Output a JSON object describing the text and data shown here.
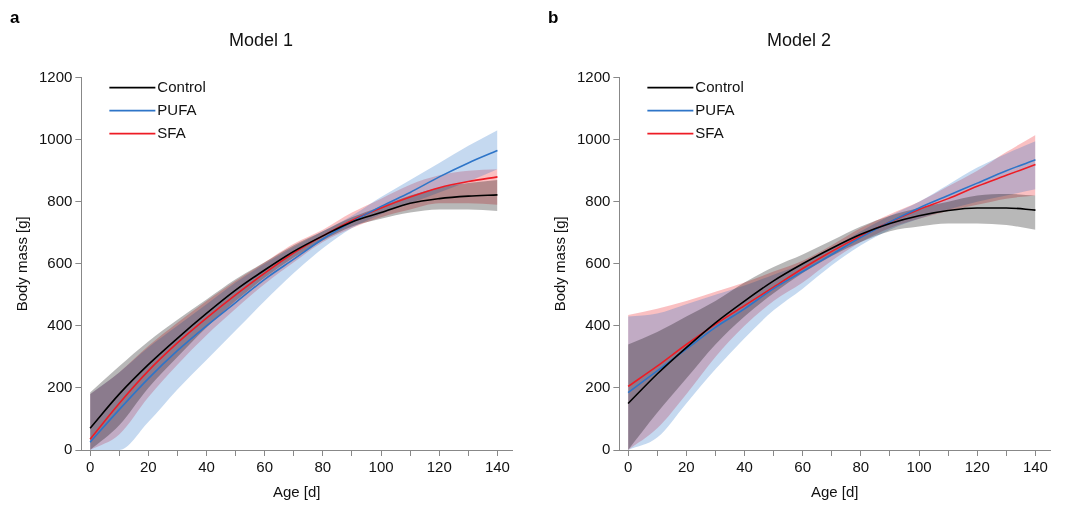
{
  "chart_data": [
    {
      "type": "line",
      "title": "Model 1",
      "xlabel": "Age [d]",
      "ylabel": "Body mass [g]",
      "annotations": [
        "a"
      ],
      "legend": "top left",
      "marker": "none",
      "grid": false,
      "x": [
        0,
        10,
        20,
        30,
        40,
        50,
        60,
        70,
        80,
        90,
        100,
        110,
        120,
        130,
        140
      ],
      "xlim": [
        -3,
        145
      ],
      "xticks": [
        0,
        {
          "value": 10,
          "label": null
        },
        20,
        {
          "value": 30,
          "label": null
        },
        40,
        {
          "value": 50,
          "label": null
        },
        60,
        {
          "value": 70,
          "label": null
        },
        80,
        {
          "value": 90,
          "label": null
        },
        100,
        {
          "value": 110,
          "label": null
        },
        120,
        {
          "value": 130,
          "label": null
        },
        140
      ],
      "ylim": [
        0,
        1200
      ],
      "yticks": [
        0,
        200,
        400,
        600,
        800,
        1000,
        1200
      ],
      "series": [
        {
          "name": "Control",
          "color": "#000000",
          "values": [
            70,
            180,
            275,
            360,
            440,
            515,
            580,
            640,
            690,
            735,
            765,
            795,
            810,
            818,
            822
          ],
          "lower": [
            0,
            80,
            200,
            300,
            395,
            480,
            555,
            620,
            675,
            720,
            745,
            765,
            775,
            775,
            770
          ],
          "upper": [
            185,
            270,
            350,
            420,
            485,
            550,
            605,
            660,
            705,
            750,
            785,
            820,
            845,
            860,
            870
          ]
        },
        {
          "name": "PUFA",
          "color": "#2e75c8",
          "values": [
            25,
            130,
            230,
            320,
            400,
            475,
            550,
            615,
            680,
            735,
            785,
            830,
            880,
            925,
            965
          ],
          "lower": [
            0,
            0,
            90,
            195,
            290,
            385,
            480,
            570,
            650,
            715,
            760,
            795,
            830,
            865,
            905
          ],
          "upper": [
            180,
            250,
            330,
            400,
            470,
            540,
            600,
            655,
            705,
            755,
            815,
            870,
            925,
            980,
            1030
          ]
        },
        {
          "name": "SFA",
          "color": "#ee1c25",
          "values": [
            35,
            150,
            255,
            345,
            425,
            500,
            570,
            635,
            690,
            740,
            780,
            815,
            845,
            865,
            880
          ],
          "lower": [
            0,
            50,
            170,
            275,
            370,
            455,
            535,
            605,
            670,
            715,
            750,
            775,
            795,
            795,
            790
          ],
          "upper": [
            180,
            250,
            335,
            410,
            480,
            545,
            605,
            665,
            710,
            765,
            810,
            855,
            885,
            900,
            905
          ]
        }
      ]
    },
    {
      "type": "line",
      "title": "Model 2",
      "xlabel": "Age [d]",
      "ylabel": "Body mass [g]",
      "annotations": [
        "b"
      ],
      "legend": "top left",
      "marker": "none",
      "grid": false,
      "x": [
        0,
        10,
        20,
        30,
        40,
        50,
        60,
        70,
        80,
        90,
        100,
        110,
        120,
        130,
        140
      ],
      "xlim": [
        -3,
        145
      ],
      "xticks": [
        0,
        {
          "value": 10,
          "label": null
        },
        20,
        {
          "value": 30,
          "label": null
        },
        40,
        {
          "value": 50,
          "label": null
        },
        60,
        {
          "value": 70,
          "label": null
        },
        80,
        {
          "value": 90,
          "label": null
        },
        100,
        {
          "value": 110,
          "label": null
        },
        120,
        {
          "value": 130,
          "label": null
        },
        140
      ],
      "ylim": [
        0,
        1200
      ],
      "yticks": [
        0,
        200,
        400,
        600,
        800,
        1000,
        1200
      ],
      "series": [
        {
          "name": "Control",
          "color": "#000000",
          "values": [
            150,
            245,
            330,
            410,
            480,
            545,
            600,
            650,
            695,
            730,
            755,
            772,
            780,
            780,
            773
          ],
          "lower": [
            0,
            120,
            230,
            340,
            430,
            505,
            570,
            625,
            670,
            705,
            720,
            730,
            730,
            725,
            710
          ],
          "upper": [
            340,
            380,
            430,
            480,
            540,
            590,
            630,
            675,
            720,
            755,
            780,
            800,
            820,
            825,
            820
          ]
        },
        {
          "name": "PUFA",
          "color": "#2e75c8",
          "values": [
            185,
            255,
            325,
            395,
            455,
            520,
            575,
            630,
            685,
            735,
            780,
            820,
            860,
            900,
            935
          ],
          "lower": [
            0,
            40,
            150,
            260,
            360,
            450,
            520,
            595,
            660,
            710,
            745,
            775,
            800,
            820,
            840
          ],
          "upper": [
            430,
            440,
            470,
            500,
            530,
            565,
            600,
            650,
            705,
            755,
            800,
            855,
            910,
            955,
            995
          ]
        },
        {
          "name": "SFA",
          "color": "#ee1c25",
          "values": [
            205,
            270,
            340,
            405,
            465,
            525,
            585,
            640,
            690,
            735,
            775,
            810,
            850,
            885,
            920
          ],
          "lower": [
            0,
            70,
            180,
            300,
            400,
            480,
            540,
            610,
            670,
            715,
            745,
            770,
            790,
            810,
            820
          ],
          "upper": [
            435,
            455,
            480,
            510,
            540,
            575,
            610,
            660,
            715,
            760,
            800,
            850,
            900,
            960,
            1015
          ]
        }
      ]
    }
  ]
}
